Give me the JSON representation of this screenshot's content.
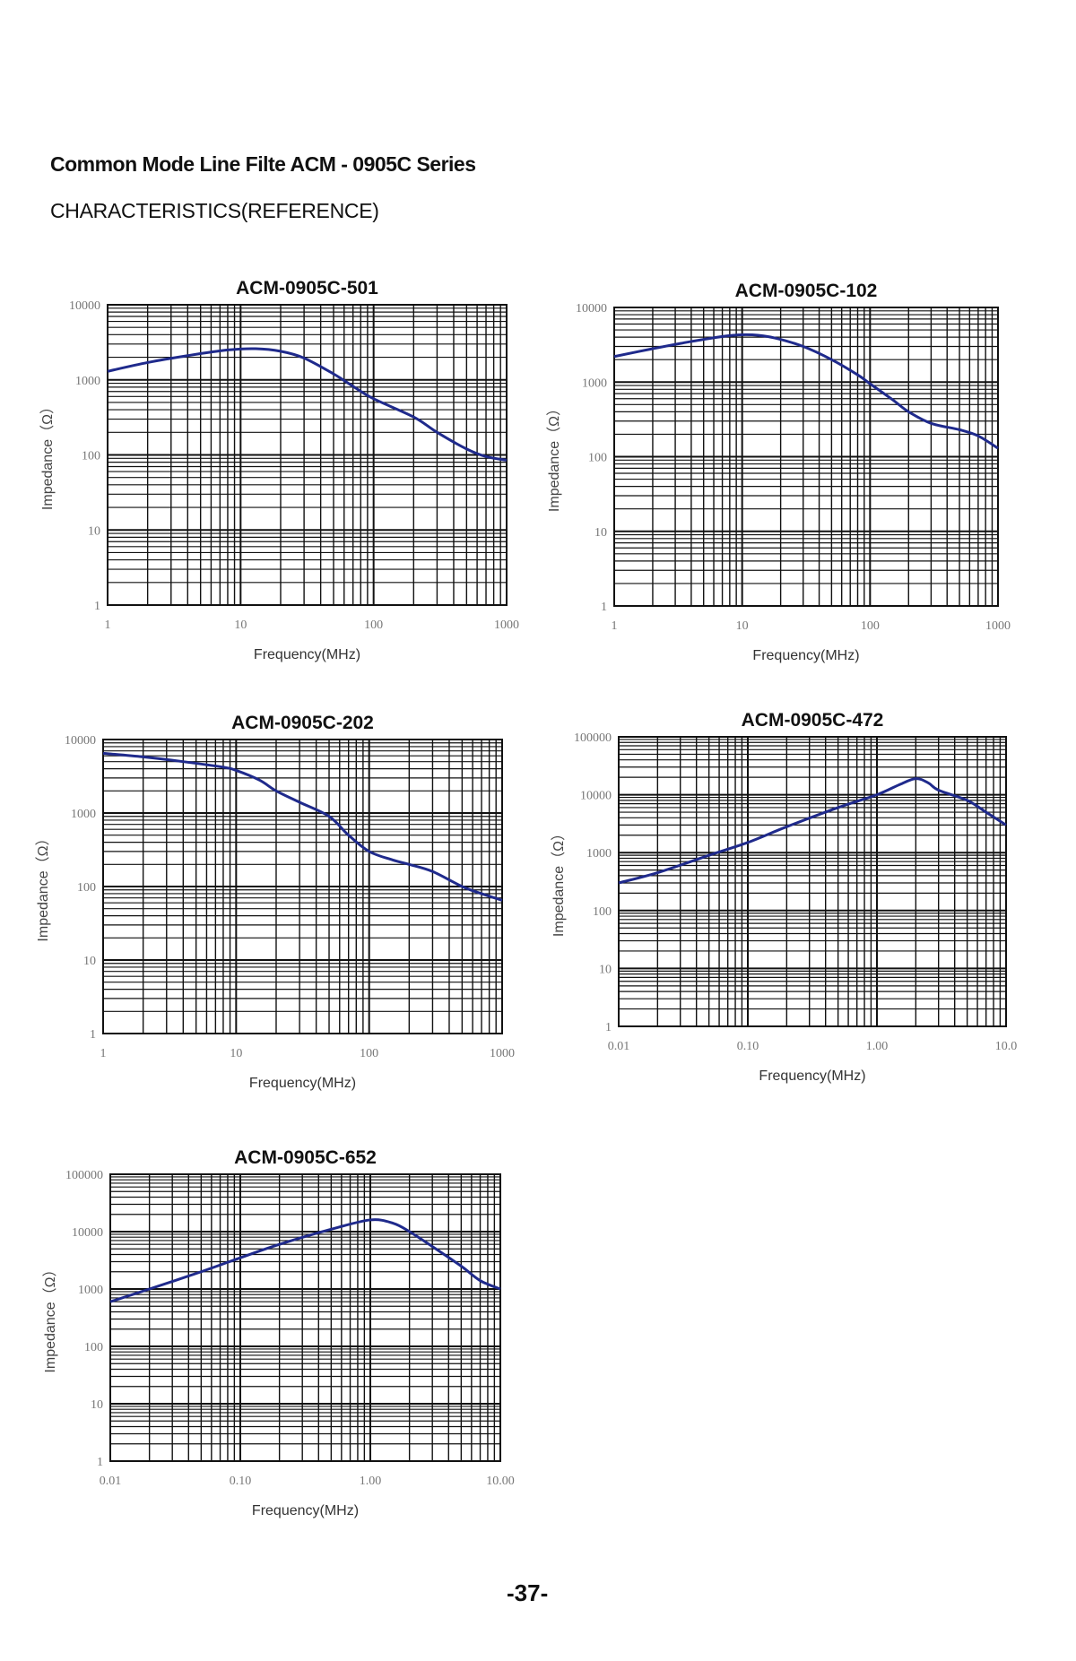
{
  "page": {
    "title": "Common Mode Line Filte ACM - 0905C  Series",
    "subtitle": "CHARACTERISTICS(REFERENCE)",
    "page_number": "-37-"
  },
  "colors": {
    "curve": "#1f2a8c",
    "grid": "#111111",
    "tick_text": "#777777"
  },
  "chart_data": [
    {
      "type": "line",
      "title": "ACM-0905C-501",
      "xlabel": "Frequency(MHz)",
      "ylabel": "Impedance（Ω）",
      "xscale": "log",
      "yscale": "log",
      "xlim": [
        1,
        1000
      ],
      "ylim": [
        1,
        10000
      ],
      "xticks": [
        "1",
        "10",
        "100",
        "1000"
      ],
      "yticks": [
        "1",
        "10",
        "100",
        "1000",
        "10000"
      ],
      "grid": true,
      "series": [
        {
          "x": [
            1,
            2,
            4,
            8,
            13,
            20,
            30,
            50,
            70,
            100,
            200,
            300,
            500,
            700,
            1000
          ],
          "y": [
            1300,
            1700,
            2100,
            2500,
            2600,
            2400,
            1950,
            1200,
            820,
            560,
            320,
            200,
            120,
            95,
            85
          ]
        }
      ]
    },
    {
      "type": "line",
      "title": "ACM-0905C-102",
      "xlabel": "Frequency(MHz)",
      "ylabel": "Impedance（Ω）",
      "xscale": "log",
      "yscale": "log",
      "xlim": [
        1,
        1000
      ],
      "ylim": [
        1,
        10000
      ],
      "xticks": [
        "1",
        "10",
        "100",
        "1000"
      ],
      "yticks": [
        "1",
        "10",
        "100",
        "1000",
        "10000"
      ],
      "grid": true,
      "series": [
        {
          "x": [
            1,
            2,
            4,
            8,
            12,
            18,
            30,
            50,
            80,
            100,
            150,
            200,
            300,
            500,
            700,
            1000
          ],
          "y": [
            2200,
            2800,
            3500,
            4200,
            4300,
            3900,
            3000,
            2000,
            1250,
            950,
            580,
            400,
            280,
            230,
            190,
            130
          ]
        }
      ]
    },
    {
      "type": "line",
      "title": "ACM-0905C-202",
      "xlabel": "Frequency(MHz)",
      "ylabel": "Impedance（Ω）",
      "xscale": "log",
      "yscale": "log",
      "xlim": [
        1,
        1000
      ],
      "ylim": [
        1,
        10000
      ],
      "xticks": [
        "1",
        "10",
        "100",
        "1000"
      ],
      "yticks": [
        "1",
        "10",
        "100",
        "1000",
        "10000"
      ],
      "grid": true,
      "series": [
        {
          "x": [
            1,
            2,
            4,
            8,
            10,
            15,
            20,
            30,
            50,
            70,
            100,
            150,
            200,
            300,
            500,
            700,
            1000
          ],
          "y": [
            6500,
            5800,
            5000,
            4200,
            3800,
            2800,
            2000,
            1400,
            900,
            500,
            300,
            230,
            200,
            160,
            100,
            80,
            65
          ]
        }
      ]
    },
    {
      "type": "line",
      "title": "ACM-0905C-472",
      "xlabel": "Frequency(MHz)",
      "ylabel": "Impedance（Ω）",
      "xscale": "log",
      "yscale": "log",
      "xlim": [
        0.01,
        10
      ],
      "ylim": [
        1,
        100000
      ],
      "xticks": [
        "0.01",
        "0.10",
        "1.00",
        "10.0"
      ],
      "yticks": [
        "1",
        "10",
        "100",
        "1000",
        "10000",
        "100000"
      ],
      "grid": true,
      "series": [
        {
          "x": [
            0.01,
            0.02,
            0.05,
            0.1,
            0.2,
            0.5,
            1,
            1.5,
            2,
            2.5,
            3,
            5,
            7,
            10
          ],
          "y": [
            300,
            450,
            900,
            1500,
            2800,
            6000,
            10000,
            15000,
            19000,
            16000,
            12000,
            8000,
            5000,
            3000
          ]
        }
      ]
    },
    {
      "type": "line",
      "title": "ACM-0905C-652",
      "xlabel": "Frequency(MHz)",
      "ylabel": "Impedance（Ω）",
      "xscale": "log",
      "yscale": "log",
      "xlim": [
        0.01,
        10
      ],
      "ylim": [
        1,
        100000
      ],
      "xticks": [
        "0.01",
        "0.10",
        "1.00",
        "10.00"
      ],
      "yticks": [
        "1",
        "10",
        "100",
        "1000",
        "10000",
        "100000"
      ],
      "grid": true,
      "series": [
        {
          "x": [
            0.01,
            0.02,
            0.05,
            0.1,
            0.2,
            0.5,
            1,
            1.5,
            2,
            3,
            5,
            7,
            10
          ],
          "y": [
            600,
            1000,
            2000,
            3500,
            6000,
            11000,
            16000,
            14000,
            10000,
            5500,
            2500,
            1400,
            1000
          ]
        }
      ]
    }
  ]
}
